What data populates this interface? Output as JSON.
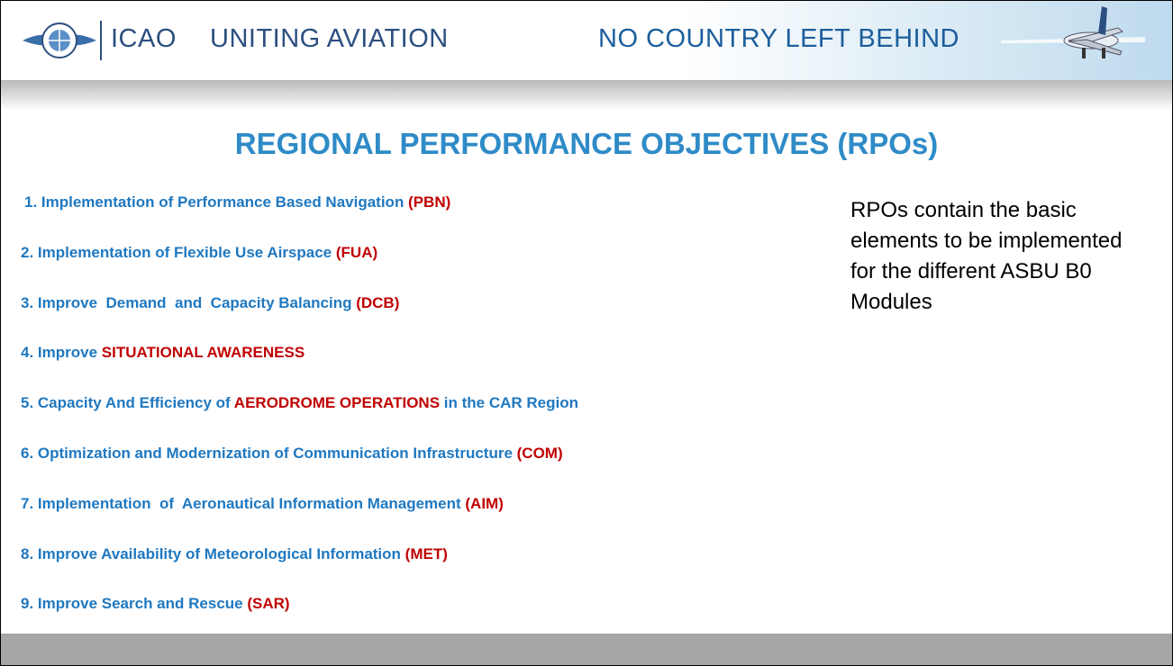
{
  "header": {
    "org": "ICAO",
    "motto": "UNITING AVIATION",
    "slogan": "NO COUNTRY LEFT BEHIND"
  },
  "title": "REGIONAL PERFORMANCE OBJECTIVES (RPOs)",
  "items": [
    [
      {
        "text": "1. Implementation of Performance Based Navigation ",
        "color": "#1f78c0"
      },
      {
        "text": "(PBN)",
        "color": "#c00000"
      }
    ],
    [
      {
        "text": "2. Implementation of Flexible Use Airspace ",
        "color": "#1f78c0"
      },
      {
        "text": "(FUA)",
        "color": "#c00000"
      }
    ],
    [
      {
        "text": "3. Improve  Demand  and  Capacity Balancing ",
        "color": "#1f78c0"
      },
      {
        "text": "(DCB)",
        "color": "#c00000"
      }
    ],
    [
      {
        "text": "4. Improve ",
        "color": "#1f78c0"
      },
      {
        "text": "SITUATIONAL AWARENESS",
        "color": "#c00000"
      }
    ],
    [
      {
        "text": "5. Capacity And Efficiency of ",
        "color": "#1f78c0"
      },
      {
        "text": "AERODROME OPERATIONS",
        "color": "#c00000"
      },
      {
        "text": " in the CAR Region",
        "color": "#1f78c0"
      }
    ],
    [
      {
        "text": "6. Optimization and Modernization of Communication Infrastructure ",
        "color": "#1f78c0"
      },
      {
        "text": "(COM)",
        "color": "#c00000"
      }
    ],
    [
      {
        "text": "7. Implementation  of  Aeronautical Information Management ",
        "color": "#1f78c0"
      },
      {
        "text": "(AIM)",
        "color": "#c00000"
      }
    ],
    [
      {
        "text": "8. Improve Availability of Meteorological Information ",
        "color": "#1f78c0"
      },
      {
        "text": "(MET)",
        "color": "#c00000"
      }
    ],
    [
      {
        "text": "9. Improve Search and Rescue ",
        "color": "#1f78c0"
      },
      {
        "text": "(SAR)",
        "color": "#c00000"
      }
    ]
  ],
  "note": "RPOs contain the basic elements to be implemented for the different ASBU B0 Modules"
}
